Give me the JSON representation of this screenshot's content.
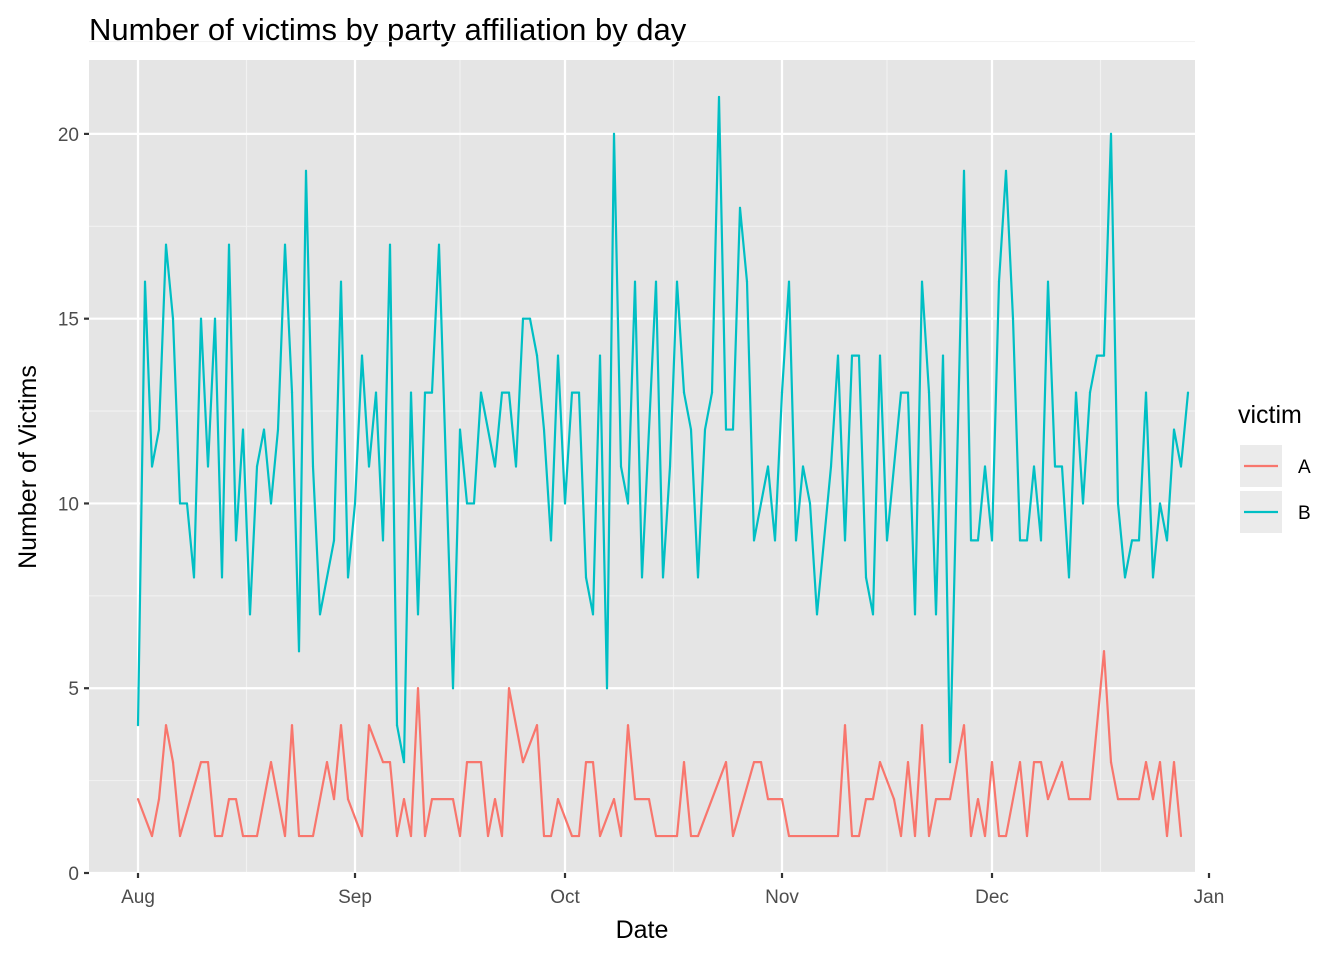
{
  "chart_data": {
    "type": "line",
    "title": "Number of victims by party affiliation by day",
    "xlabel": "Date",
    "ylabel": "Number of Victims",
    "xlim": [
      "2023-07-25",
      "2023-12-30"
    ],
    "ylim": [
      0,
      22
    ],
    "x_ticks": [
      "Aug",
      "Sep",
      "Oct",
      "Nov",
      "Dec",
      "Jan"
    ],
    "x_tick_dates": [
      "2023-08-01",
      "2023-09-01",
      "2023-10-01",
      "2023-11-01",
      "2023-12-01",
      "2024-01-01"
    ],
    "y_ticks": [
      "0",
      "5",
      "10",
      "15",
      "20"
    ],
    "grid": true,
    "panel_background": "#e5e5e5",
    "legend": {
      "title": "victim",
      "position": "right",
      "entries": [
        {
          "label": "A",
          "color": "#F8766D"
        },
        {
          "label": "B",
          "color": "#00BFC4"
        }
      ]
    },
    "series": [
      {
        "name": "A",
        "color": "#F8766D",
        "points": [
          [
            "2023-08-01",
            2
          ],
          [
            "2023-08-03",
            1
          ],
          [
            "2023-08-04",
            2
          ],
          [
            "2023-08-05",
            4
          ],
          [
            "2023-08-06",
            3
          ],
          [
            "2023-08-07",
            1
          ],
          [
            "2023-08-10",
            3
          ],
          [
            "2023-08-11",
            3
          ],
          [
            "2023-08-12",
            1
          ],
          [
            "2023-08-13",
            1
          ],
          [
            "2023-08-14",
            2
          ],
          [
            "2023-08-15",
            2
          ],
          [
            "2023-08-16",
            1
          ],
          [
            "2023-08-18",
            1
          ],
          [
            "2023-08-20",
            3
          ],
          [
            "2023-08-22",
            1
          ],
          [
            "2023-08-23",
            4
          ],
          [
            "2023-08-24",
            1
          ],
          [
            "2023-08-26",
            1
          ],
          [
            "2023-08-28",
            3
          ],
          [
            "2023-08-29",
            2
          ],
          [
            "2023-08-30",
            4
          ],
          [
            "2023-08-31",
            2
          ],
          [
            "2023-09-02",
            1
          ],
          [
            "2023-09-03",
            4
          ],
          [
            "2023-09-05",
            3
          ],
          [
            "2023-09-06",
            3
          ],
          [
            "2023-09-07",
            1
          ],
          [
            "2023-09-08",
            2
          ],
          [
            "2023-09-09",
            1
          ],
          [
            "2023-09-10",
            5
          ],
          [
            "2023-09-11",
            1
          ],
          [
            "2023-09-12",
            2
          ],
          [
            "2023-09-15",
            2
          ],
          [
            "2023-09-16",
            1
          ],
          [
            "2023-09-17",
            3
          ],
          [
            "2023-09-19",
            3
          ],
          [
            "2023-09-20",
            1
          ],
          [
            "2023-09-21",
            2
          ],
          [
            "2023-09-22",
            1
          ],
          [
            "2023-09-23",
            5
          ],
          [
            "2023-09-25",
            3
          ],
          [
            "2023-09-27",
            4
          ],
          [
            "2023-09-28",
            1
          ],
          [
            "2023-09-29",
            1
          ],
          [
            "2023-09-30",
            2
          ],
          [
            "2023-10-02",
            1
          ],
          [
            "2023-10-03",
            1
          ],
          [
            "2023-10-04",
            3
          ],
          [
            "2023-10-05",
            3
          ],
          [
            "2023-10-06",
            1
          ],
          [
            "2023-10-08",
            2
          ],
          [
            "2023-10-09",
            1
          ],
          [
            "2023-10-10",
            4
          ],
          [
            "2023-10-11",
            2
          ],
          [
            "2023-10-13",
            2
          ],
          [
            "2023-10-14",
            1
          ],
          [
            "2023-10-17",
            1
          ],
          [
            "2023-10-18",
            3
          ],
          [
            "2023-10-19",
            1
          ],
          [
            "2023-10-20",
            1
          ],
          [
            "2023-10-24",
            3
          ],
          [
            "2023-10-25",
            1
          ],
          [
            "2023-10-28",
            3
          ],
          [
            "2023-10-29",
            3
          ],
          [
            "2023-10-30",
            2
          ],
          [
            "2023-11-01",
            2
          ],
          [
            "2023-11-02",
            1
          ],
          [
            "2023-11-09",
            1
          ],
          [
            "2023-11-10",
            4
          ],
          [
            "2023-11-11",
            1
          ],
          [
            "2023-11-12",
            1
          ],
          [
            "2023-11-13",
            2
          ],
          [
            "2023-11-14",
            2
          ],
          [
            "2023-11-15",
            3
          ],
          [
            "2023-11-17",
            2
          ],
          [
            "2023-11-18",
            1
          ],
          [
            "2023-11-19",
            3
          ],
          [
            "2023-11-20",
            1
          ],
          [
            "2023-11-21",
            4
          ],
          [
            "2023-11-22",
            1
          ],
          [
            "2023-11-23",
            2
          ],
          [
            "2023-11-25",
            2
          ],
          [
            "2023-11-27",
            4
          ],
          [
            "2023-11-28",
            1
          ],
          [
            "2023-11-29",
            2
          ],
          [
            "2023-11-30",
            1
          ],
          [
            "2023-12-01",
            3
          ],
          [
            "2023-12-02",
            1
          ],
          [
            "2023-12-03",
            1
          ],
          [
            "2023-12-05",
            3
          ],
          [
            "2023-12-06",
            1
          ],
          [
            "2023-12-07",
            3
          ],
          [
            "2023-12-08",
            3
          ],
          [
            "2023-12-09",
            2
          ],
          [
            "2023-12-11",
            3
          ],
          [
            "2023-12-12",
            2
          ],
          [
            "2023-12-15",
            2
          ],
          [
            "2023-12-17",
            6
          ],
          [
            "2023-12-18",
            3
          ],
          [
            "2023-12-19",
            2
          ],
          [
            "2023-12-22",
            2
          ],
          [
            "2023-12-23",
            3
          ],
          [
            "2023-12-24",
            2
          ],
          [
            "2023-12-25",
            3
          ],
          [
            "2023-12-26",
            1
          ],
          [
            "2023-12-27",
            3
          ],
          [
            "2023-12-28",
            1
          ]
        ]
      },
      {
        "name": "B",
        "color": "#00BFC4",
        "points": [
          [
            "2023-08-01",
            4
          ],
          [
            "2023-08-02",
            16
          ],
          [
            "2023-08-03",
            11
          ],
          [
            "2023-08-04",
            12
          ],
          [
            "2023-08-05",
            17
          ],
          [
            "2023-08-06",
            15
          ],
          [
            "2023-08-07",
            10
          ],
          [
            "2023-08-08",
            10
          ],
          [
            "2023-08-09",
            8
          ],
          [
            "2023-08-10",
            15
          ],
          [
            "2023-08-11",
            11
          ],
          [
            "2023-08-12",
            15
          ],
          [
            "2023-08-13",
            8
          ],
          [
            "2023-08-14",
            17
          ],
          [
            "2023-08-15",
            9
          ],
          [
            "2023-08-16",
            12
          ],
          [
            "2023-08-17",
            7
          ],
          [
            "2023-08-18",
            11
          ],
          [
            "2023-08-19",
            12
          ],
          [
            "2023-08-20",
            10
          ],
          [
            "2023-08-21",
            12
          ],
          [
            "2023-08-22",
            17
          ],
          [
            "2023-08-23",
            13
          ],
          [
            "2023-08-24",
            6
          ],
          [
            "2023-08-25",
            19
          ],
          [
            "2023-08-26",
            11
          ],
          [
            "2023-08-27",
            7
          ],
          [
            "2023-08-29",
            9
          ],
          [
            "2023-08-30",
            16
          ],
          [
            "2023-08-31",
            8
          ],
          [
            "2023-09-01",
            10
          ],
          [
            "2023-09-02",
            14
          ],
          [
            "2023-09-03",
            11
          ],
          [
            "2023-09-04",
            13
          ],
          [
            "2023-09-05",
            9
          ],
          [
            "2023-09-06",
            17
          ],
          [
            "2023-09-07",
            4
          ],
          [
            "2023-09-08",
            3
          ],
          [
            "2023-09-09",
            13
          ],
          [
            "2023-09-10",
            7
          ],
          [
            "2023-09-11",
            13
          ],
          [
            "2023-09-12",
            13
          ],
          [
            "2023-09-13",
            17
          ],
          [
            "2023-09-15",
            5
          ],
          [
            "2023-09-16",
            12
          ],
          [
            "2023-09-17",
            10
          ],
          [
            "2023-09-18",
            10
          ],
          [
            "2023-09-19",
            13
          ],
          [
            "2023-09-21",
            11
          ],
          [
            "2023-09-22",
            13
          ],
          [
            "2023-09-23",
            13
          ],
          [
            "2023-09-24",
            11
          ],
          [
            "2023-09-25",
            15
          ],
          [
            "2023-09-26",
            15
          ],
          [
            "2023-09-27",
            14
          ],
          [
            "2023-09-28",
            12
          ],
          [
            "2023-09-29",
            9
          ],
          [
            "2023-09-30",
            14
          ],
          [
            "2023-10-01",
            10
          ],
          [
            "2023-10-02",
            13
          ],
          [
            "2023-10-03",
            13
          ],
          [
            "2023-10-04",
            8
          ],
          [
            "2023-10-05",
            7
          ],
          [
            "2023-10-06",
            14
          ],
          [
            "2023-10-07",
            5
          ],
          [
            "2023-10-08",
            20
          ],
          [
            "2023-10-09",
            11
          ],
          [
            "2023-10-10",
            10
          ],
          [
            "2023-10-11",
            16
          ],
          [
            "2023-10-12",
            8
          ],
          [
            "2023-10-14",
            16
          ],
          [
            "2023-10-15",
            8
          ],
          [
            "2023-10-16",
            11
          ],
          [
            "2023-10-17",
            16
          ],
          [
            "2023-10-18",
            13
          ],
          [
            "2023-10-19",
            12
          ],
          [
            "2023-10-20",
            8
          ],
          [
            "2023-10-21",
            12
          ],
          [
            "2023-10-22",
            13
          ],
          [
            "2023-10-23",
            21
          ],
          [
            "2023-10-24",
            12
          ],
          [
            "2023-10-25",
            12
          ],
          [
            "2023-10-26",
            18
          ],
          [
            "2023-10-27",
            16
          ],
          [
            "2023-10-28",
            9
          ],
          [
            "2023-10-30",
            11
          ],
          [
            "2023-10-31",
            9
          ],
          [
            "2023-11-01",
            13
          ],
          [
            "2023-11-02",
            16
          ],
          [
            "2023-11-03",
            9
          ],
          [
            "2023-11-04",
            11
          ],
          [
            "2023-11-05",
            10
          ],
          [
            "2023-11-06",
            7
          ],
          [
            "2023-11-08",
            11
          ],
          [
            "2023-11-09",
            14
          ],
          [
            "2023-11-10",
            9
          ],
          [
            "2023-11-11",
            14
          ],
          [
            "2023-11-12",
            14
          ],
          [
            "2023-11-13",
            8
          ],
          [
            "2023-11-14",
            7
          ],
          [
            "2023-11-15",
            14
          ],
          [
            "2023-11-16",
            9
          ],
          [
            "2023-11-18",
            13
          ],
          [
            "2023-11-19",
            13
          ],
          [
            "2023-11-20",
            7
          ],
          [
            "2023-11-21",
            16
          ],
          [
            "2023-11-22",
            13
          ],
          [
            "2023-11-23",
            7
          ],
          [
            "2023-11-24",
            14
          ],
          [
            "2023-11-25",
            3
          ],
          [
            "2023-11-27",
            19
          ],
          [
            "2023-11-28",
            9
          ],
          [
            "2023-11-29",
            9
          ],
          [
            "2023-11-30",
            11
          ],
          [
            "2023-12-01",
            9
          ],
          [
            "2023-12-02",
            16
          ],
          [
            "2023-12-03",
            19
          ],
          [
            "2023-12-04",
            15
          ],
          [
            "2023-12-05",
            9
          ],
          [
            "2023-12-06",
            9
          ],
          [
            "2023-12-07",
            11
          ],
          [
            "2023-12-08",
            9
          ],
          [
            "2023-12-09",
            16
          ],
          [
            "2023-12-10",
            11
          ],
          [
            "2023-12-11",
            11
          ],
          [
            "2023-12-12",
            8
          ],
          [
            "2023-12-13",
            13
          ],
          [
            "2023-12-14",
            10
          ],
          [
            "2023-12-15",
            13
          ],
          [
            "2023-12-16",
            14
          ],
          [
            "2023-12-17",
            14
          ],
          [
            "2023-12-18",
            20
          ],
          [
            "2023-12-19",
            10
          ],
          [
            "2023-12-20",
            8
          ],
          [
            "2023-12-21",
            9
          ],
          [
            "2023-12-22",
            9
          ],
          [
            "2023-12-23",
            13
          ],
          [
            "2023-12-24",
            8
          ],
          [
            "2023-12-25",
            10
          ],
          [
            "2023-12-26",
            9
          ],
          [
            "2023-12-27",
            12
          ],
          [
            "2023-12-28",
            11
          ],
          [
            "2023-12-29",
            13
          ]
        ]
      }
    ]
  }
}
